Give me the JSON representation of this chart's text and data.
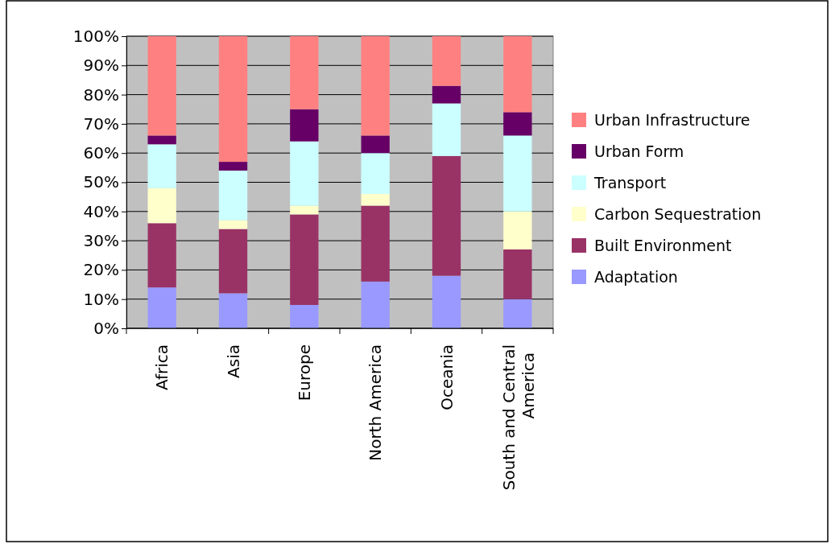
{
  "chart_data": {
    "type": "bar",
    "stacked": true,
    "categories": [
      "Africa",
      "Asia",
      "Europe",
      "North America",
      "Oceania",
      "South and Central America"
    ],
    "series": [
      {
        "name": "Adaptation",
        "color": "#9999ff",
        "values": [
          14,
          12,
          8,
          16,
          18,
          10
        ]
      },
      {
        "name": "Built Environment",
        "color": "#993366",
        "values": [
          22,
          22,
          31,
          26,
          41,
          17
        ]
      },
      {
        "name": "Carbon Sequestration",
        "color": "#ffffcc",
        "values": [
          12,
          3,
          3,
          4,
          0,
          13
        ]
      },
      {
        "name": "Transport",
        "color": "#ccffff",
        "values": [
          15,
          17,
          22,
          14,
          18,
          26
        ]
      },
      {
        "name": "Urban Form",
        "color": "#660066",
        "values": [
          3,
          3,
          11,
          6,
          6,
          8
        ]
      },
      {
        "name": "Urban Infrastructure",
        "color": "#ff8080",
        "values": [
          34,
          43,
          25,
          34,
          17,
          26
        ]
      }
    ],
    "ylim": [
      0,
      100
    ],
    "yticks": [
      {
        "value": 0,
        "label": "0%"
      },
      {
        "value": 10,
        "label": "10%"
      },
      {
        "value": 20,
        "label": "20%"
      },
      {
        "value": 30,
        "label": "30%"
      },
      {
        "value": 40,
        "label": "40%"
      },
      {
        "value": 50,
        "label": "50%"
      },
      {
        "value": 60,
        "label": "60%"
      },
      {
        "value": 70,
        "label": "70%"
      },
      {
        "value": 80,
        "label": "80%"
      },
      {
        "value": 90,
        "label": "90%"
      },
      {
        "value": 100,
        "label": "100%"
      }
    ],
    "grid": "y",
    "legend": "right"
  }
}
